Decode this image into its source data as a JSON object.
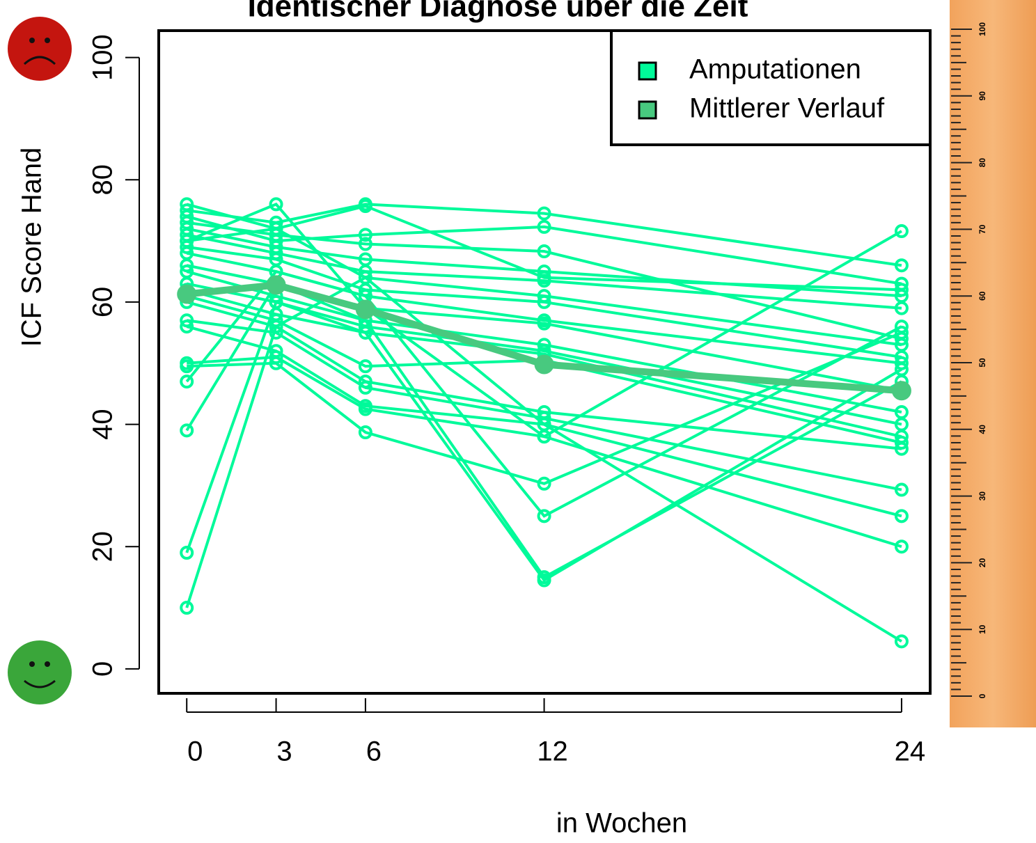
{
  "chart_data": {
    "type": "line",
    "title": "Identischer Diagnose über die Zeit",
    "x_label": "in Wochen",
    "y_label": "ICF Score Hand",
    "x": [
      0,
      3,
      6,
      12,
      24
    ],
    "xlim": [
      -0.94,
      24.96
    ],
    "xticks": [
      0,
      3,
      6,
      12,
      24
    ],
    "ylim": [
      -4,
      104.4
    ],
    "yticks": [
      0,
      20,
      40,
      60,
      80,
      100
    ],
    "legend": "topright",
    "series": [
      {
        "name": "Amputationen",
        "color": "#00fa9a",
        "lines": [
          [
            76,
            72,
            75.7,
            64,
            62
          ],
          [
            75,
            73,
            76,
            74.5,
            66
          ],
          [
            74,
            70,
            71,
            72.3,
            63
          ],
          [
            73,
            71,
            69.5,
            68.3,
            54
          ],
          [
            72,
            69,
            67,
            65,
            61
          ],
          [
            71,
            68,
            65,
            63.5,
            59
          ],
          [
            70,
            72,
            64,
            61,
            53
          ],
          [
            69,
            67,
            62,
            60,
            51
          ],
          [
            68,
            65,
            61,
            57,
            50
          ],
          [
            66,
            63,
            59,
            56.5,
            45.5
          ],
          [
            65,
            61,
            57,
            53,
            42
          ],
          [
            63,
            60,
            56,
            52,
            40
          ],
          [
            62,
            58,
            55,
            51.5,
            38
          ],
          [
            61,
            57,
            49.5,
            50.5,
            37
          ],
          [
            60,
            56,
            47,
            42,
            36
          ],
          [
            57,
            55,
            46,
            41,
            29.3
          ],
          [
            56,
            52,
            43,
            40,
            25
          ],
          [
            50,
            51,
            42.5,
            38,
            20
          ],
          [
            49.5,
            50,
            38.7,
            30.3,
            55
          ],
          [
            47,
            65,
            61,
            25,
            56
          ],
          [
            39,
            63,
            57,
            15,
            47
          ],
          [
            19,
            60,
            55,
            14.5,
            49
          ],
          [
            10,
            56,
            64,
            40,
            4.5
          ],
          [
            70,
            76,
            59,
            38,
            71.6
          ]
        ]
      },
      {
        "name": "Mittlerer Verlauf",
        "color": "#48c97f",
        "values": [
          61.3,
          62.8,
          58.8,
          49.8,
          45.5
        ]
      }
    ]
  },
  "ruler": {
    "labels": [
      "0",
      "10",
      "20",
      "30",
      "40",
      "50",
      "60",
      "70",
      "80",
      "90",
      "100"
    ]
  }
}
